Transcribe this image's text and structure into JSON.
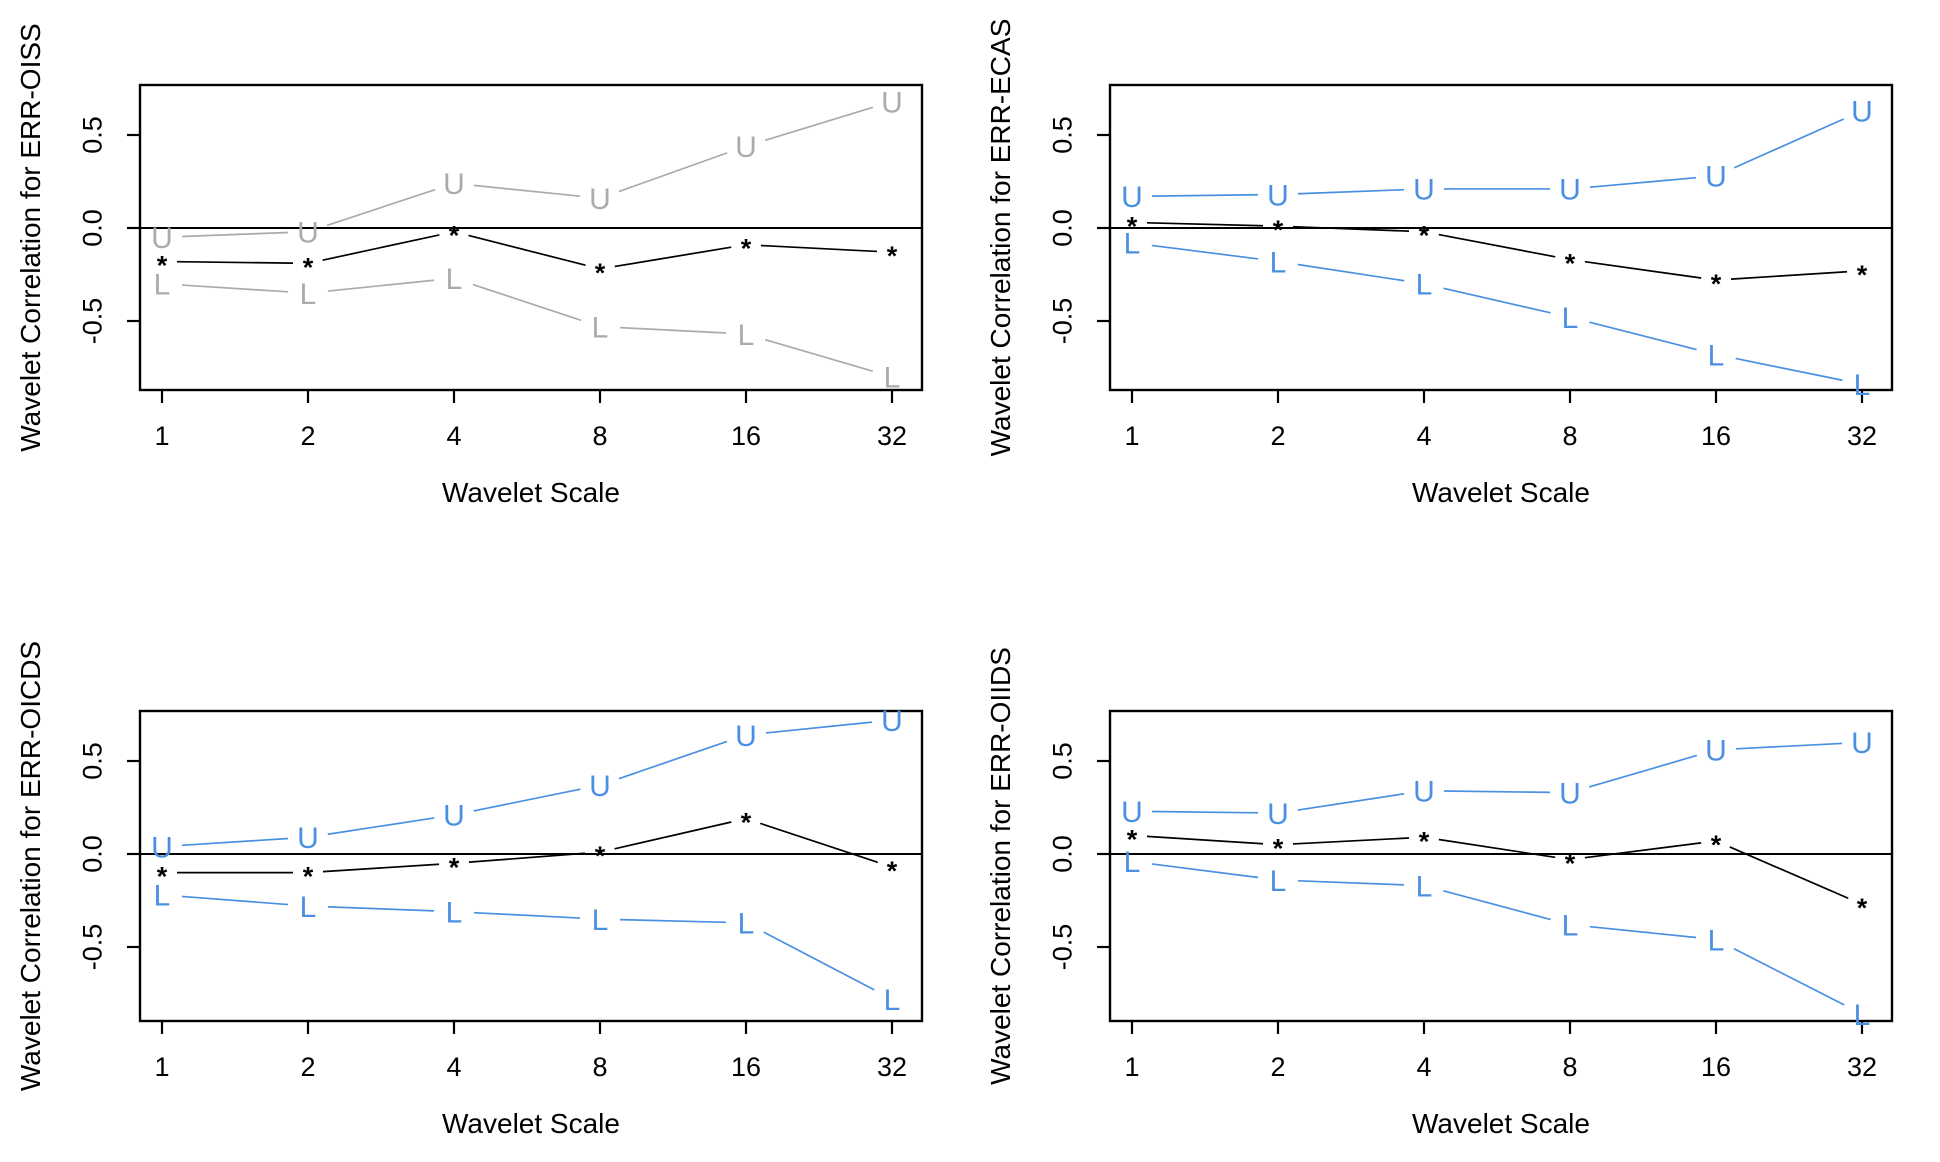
{
  "figure": {
    "description": "2x2 grid of wavelet correlation plots with upper (U) and lower (L) confidence bound lines and point estimates (*)",
    "colors": {
      "background": "#ffffff",
      "axis": "#000000",
      "estimate_line": "#000000",
      "ci_gray": "#ababab",
      "ci_blue": "#4a90e2"
    },
    "x_axis_title": "Wavelet Scale",
    "x_tick_labels": [
      "1",
      "2",
      "4",
      "8",
      "16",
      "32"
    ],
    "y_tick_labels": [
      "0.5",
      "0.0",
      "-0.5"
    ],
    "y_tick_values": [
      0.5,
      0.0,
      -0.5
    ]
  },
  "chart_data": [
    {
      "type": "line",
      "id": "err-oiss",
      "ylabel": "Wavelet Correlation for ERR-OISS",
      "xlabel": "Wavelet Scale",
      "x_scale": "log2",
      "x": [
        1,
        2,
        4,
        8,
        16,
        32
      ],
      "x_tick_labels": [
        "1",
        "2",
        "4",
        "8",
        "16",
        "32"
      ],
      "yticks": [
        0.5,
        0.0,
        -0.5
      ],
      "ylim": [
        -0.87,
        0.77
      ],
      "zero_line": true,
      "ci_color": "#ababab",
      "series": [
        {
          "name": "upper-bound",
          "marker": "U",
          "role": "ci",
          "values": [
            -0.05,
            -0.02,
            0.24,
            0.16,
            0.44,
            0.68
          ]
        },
        {
          "name": "estimate",
          "marker": "*",
          "role": "estimate",
          "values": [
            -0.18,
            -0.19,
            -0.02,
            -0.22,
            -0.09,
            -0.13
          ]
        },
        {
          "name": "lower-bound",
          "marker": "L",
          "role": "ci",
          "values": [
            -0.3,
            -0.35,
            -0.27,
            -0.53,
            -0.57,
            -0.8
          ]
        }
      ]
    },
    {
      "type": "line",
      "id": "err-ecas",
      "ylabel": "Wavelet Correlation for ERR-ECAS",
      "xlabel": "Wavelet Scale",
      "x_scale": "log2",
      "x": [
        1,
        2,
        4,
        8,
        16,
        32
      ],
      "x_tick_labels": [
        "1",
        "2",
        "4",
        "8",
        "16",
        "32"
      ],
      "yticks": [
        0.5,
        0.0,
        -0.5
      ],
      "ylim": [
        -0.87,
        0.77
      ],
      "zero_line": true,
      "ci_color": "#4a90e2",
      "series": [
        {
          "name": "upper-bound",
          "marker": "U",
          "role": "ci",
          "values": [
            0.17,
            0.18,
            0.21,
            0.21,
            0.28,
            0.63
          ]
        },
        {
          "name": "estimate",
          "marker": "*",
          "role": "estimate",
          "values": [
            0.03,
            0.01,
            -0.02,
            -0.17,
            -0.28,
            -0.23
          ]
        },
        {
          "name": "lower-bound",
          "marker": "L",
          "role": "ci",
          "values": [
            -0.08,
            -0.18,
            -0.3,
            -0.48,
            -0.68,
            -0.84
          ]
        }
      ]
    },
    {
      "type": "line",
      "id": "err-oicds",
      "ylabel": "Wavelet Correlation for ERR-OICDS",
      "xlabel": "Wavelet Scale",
      "x_scale": "log2",
      "x": [
        1,
        2,
        4,
        8,
        16,
        32
      ],
      "x_tick_labels": [
        "1",
        "2",
        "4",
        "8",
        "16",
        "32"
      ],
      "yticks": [
        0.5,
        0.0,
        -0.5
      ],
      "ylim": [
        -0.87,
        0.77
      ],
      "zero_line": true,
      "ci_color": "#4a90e2",
      "series": [
        {
          "name": "upper-bound",
          "marker": "U",
          "role": "ci",
          "values": [
            0.04,
            0.09,
            0.21,
            0.37,
            0.64,
            0.72
          ]
        },
        {
          "name": "estimate",
          "marker": "*",
          "role": "estimate",
          "values": [
            -0.1,
            -0.1,
            -0.05,
            0.01,
            0.19,
            -0.07
          ]
        },
        {
          "name": "lower-bound",
          "marker": "L",
          "role": "ci",
          "values": [
            -0.22,
            -0.28,
            -0.31,
            -0.35,
            -0.37,
            -0.78
          ]
        }
      ]
    },
    {
      "type": "line",
      "id": "err-oiids",
      "ylabel": "Wavelet Correlation for ERR-OIIDS",
      "xlabel": "Wavelet Scale",
      "x_scale": "log2",
      "x": [
        1,
        2,
        4,
        8,
        16,
        32
      ],
      "x_tick_labels": [
        "1",
        "2",
        "4",
        "8",
        "16",
        "32"
      ],
      "yticks": [
        0.5,
        0.0,
        -0.5
      ],
      "ylim": [
        -0.87,
        0.77
      ],
      "zero_line": true,
      "ci_color": "#4a90e2",
      "series": [
        {
          "name": "upper-bound",
          "marker": "U",
          "role": "ci",
          "values": [
            0.23,
            0.22,
            0.34,
            0.33,
            0.56,
            0.6
          ]
        },
        {
          "name": "estimate",
          "marker": "*",
          "role": "estimate",
          "values": [
            0.1,
            0.05,
            0.09,
            -0.03,
            0.07,
            -0.27
          ]
        },
        {
          "name": "lower-bound",
          "marker": "L",
          "role": "ci",
          "values": [
            -0.04,
            -0.14,
            -0.17,
            -0.38,
            -0.46,
            -0.86
          ]
        }
      ]
    }
  ]
}
